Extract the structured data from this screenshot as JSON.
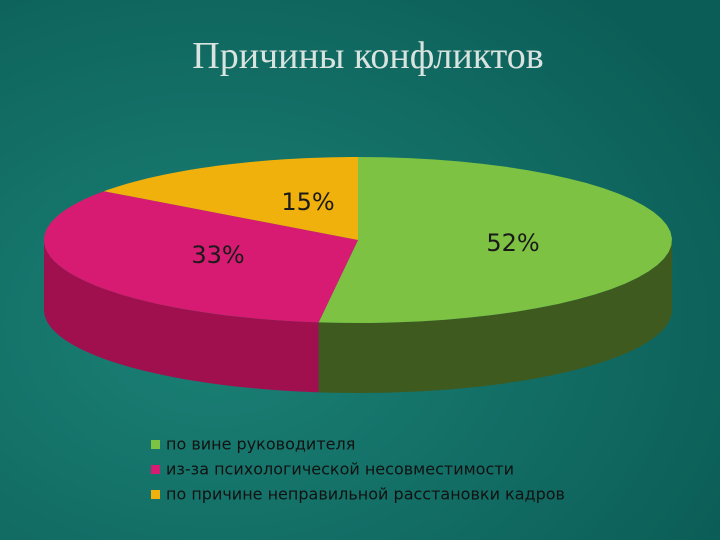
{
  "chart_data": {
    "type": "pie",
    "title": "Причины конфликтов",
    "categories": [
      "по вине руководителя",
      "из-за психологической несовместимости",
      "по причине неправильной расстановки кадров"
    ],
    "values": [
      52,
      33,
      15
    ],
    "value_labels": [
      "52%",
      "33%",
      "15%"
    ],
    "colors": [
      "#7dc242",
      "#d81b72",
      "#f0b10c"
    ],
    "side_colors": [
      "#3f5a1f",
      "#a0104f",
      "#b07f05"
    ]
  }
}
